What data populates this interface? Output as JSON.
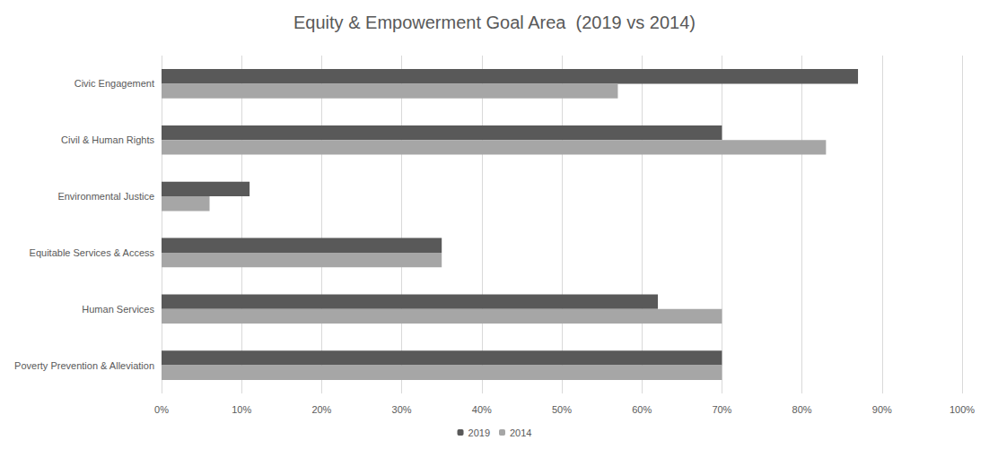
{
  "chart_data": {
    "type": "bar",
    "title": "Equity & Empowerment Goal Area  (2019 vs 2014)",
    "orientation": "horizontal",
    "categories": [
      "Civic Engagement",
      "Civil & Human Rights",
      "Environmental Justice",
      "Equitable Services & Access",
      "Human Services",
      "Poverty Prevention & Alleviation"
    ],
    "series": [
      {
        "name": "2019",
        "color": "#595959",
        "values": [
          87,
          70,
          11,
          35,
          62,
          70
        ]
      },
      {
        "name": "2014",
        "color": "#a6a6a6",
        "values": [
          57,
          83,
          6,
          35,
          70,
          70
        ]
      }
    ],
    "xlim": [
      0,
      100
    ],
    "xticks": [
      {
        "value": 0,
        "label": "0%"
      },
      {
        "value": 10,
        "label": "10%"
      },
      {
        "value": 20,
        "label": "20%"
      },
      {
        "value": 30,
        "label": "30%"
      },
      {
        "value": 40,
        "label": "40%"
      },
      {
        "value": 50,
        "label": "50%"
      },
      {
        "value": 60,
        "label": "60%"
      },
      {
        "value": 70,
        "label": "70%"
      },
      {
        "value": 80,
        "label": "80%"
      },
      {
        "value": 90,
        "label": "90%"
      },
      {
        "value": 100,
        "label": "100%"
      }
    ],
    "grid": true,
    "legend": "bottom"
  }
}
